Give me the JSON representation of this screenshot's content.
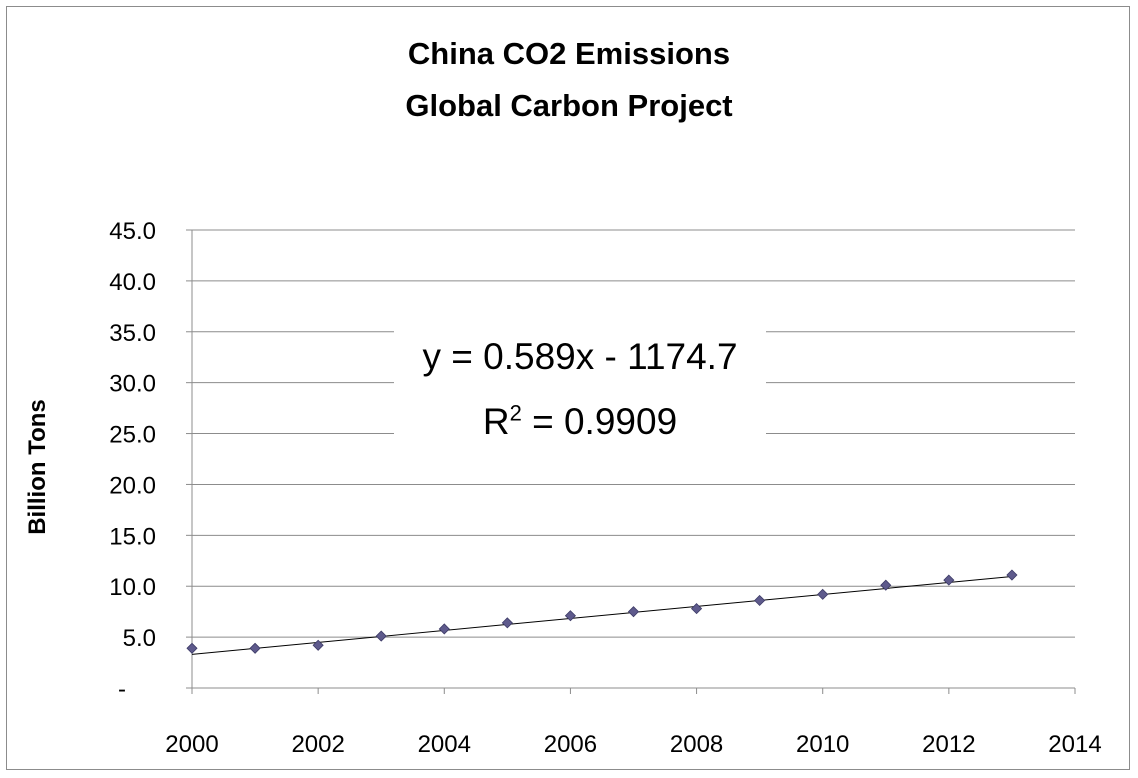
{
  "chart_data": {
    "type": "scatter",
    "title": "China CO2 Emissions",
    "subtitle": "Global Carbon Project",
    "xlabel": "",
    "ylabel": "Billion Tons",
    "xlim": [
      2000,
      2014
    ],
    "ylim": [
      0,
      45
    ],
    "x_ticks": [
      "2000",
      "2002",
      "2004",
      "2006",
      "2008",
      "2010",
      "2012",
      "2014"
    ],
    "y_ticks": [
      "-",
      "5.0",
      "10.0",
      "15.0",
      "20.0",
      "25.0",
      "30.0",
      "35.0",
      "40.0",
      "45.0"
    ],
    "grid": true,
    "series": [
      {
        "name": "China CO2 Emissions",
        "x": [
          2000,
          2001,
          2002,
          2003,
          2004,
          2005,
          2006,
          2007,
          2008,
          2009,
          2010,
          2011,
          2012,
          2013
        ],
        "y": [
          3.9,
          3.9,
          4.2,
          5.1,
          5.8,
          6.4,
          7.1,
          7.5,
          7.8,
          8.6,
          9.2,
          10.1,
          10.6,
          11.1
        ],
        "marker_color": "#5e5a8c"
      }
    ],
    "trendline": {
      "slope": 0.589,
      "intercept": -1174.7,
      "x_range": [
        2000,
        2013
      ],
      "equation_text": "y = 0.589x - 1174.7",
      "r2_prefix": "R",
      "r2_sup": "2",
      "r2_suffix": " = 0.9909"
    }
  }
}
